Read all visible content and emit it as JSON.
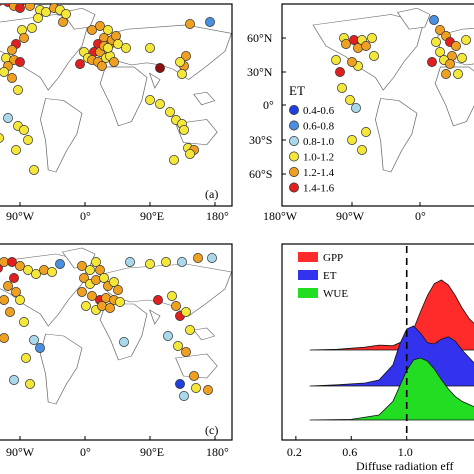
{
  "figure": {
    "panels": {
      "a": {
        "label": "(a)",
        "x_ticks": [
          "90°W",
          "0°",
          "90°E",
          "180°"
        ]
      },
      "b": {
        "label": "",
        "x_ticks": [
          "180°W",
          "90°W",
          "0°"
        ],
        "y_ticks": [
          "60°N",
          "30°N",
          "0°",
          "30°S",
          "60°S"
        ]
      },
      "c": {
        "label": "(c)",
        "x_ticks": [
          "90°W",
          "0°",
          "90°E",
          "180°"
        ]
      }
    },
    "legend_et": {
      "title": "ET",
      "items": [
        {
          "label": "0.4-0.6",
          "color": "#1f3fe0"
        },
        {
          "label": "0.6-0.8",
          "color": "#4a8fe0"
        },
        {
          "label": "0.8-1.0",
          "color": "#a8d8ea"
        },
        {
          "label": "1.0-1.2",
          "color": "#f5e73a"
        },
        {
          "label": "1.2-1.4",
          "color": "#f0a020"
        },
        {
          "label": "1.4-1.6",
          "color": "#e02020"
        }
      ]
    }
  },
  "chart_data": {
    "type": "area",
    "subtype": "ridgeline",
    "xlabel": "Diffuse radiation eff",
    "x_ticks": [
      0.2,
      0.6,
      1.0
    ],
    "x_tick_labels": [
      "0.2",
      "0.6",
      "1.0"
    ],
    "xlim": [
      0.1,
      1.5
    ],
    "reference_line": {
      "x": 1.0,
      "style": "dashed"
    },
    "legend": {
      "position": "top-left"
    },
    "series": [
      {
        "name": "GPP",
        "color": "#ff2a2a",
        "x": [
          0.3,
          0.5,
          0.7,
          0.8,
          0.9,
          1.0,
          1.05,
          1.1,
          1.15,
          1.2,
          1.25,
          1.3,
          1.35,
          1.4,
          1.45,
          1.5
        ],
        "density": [
          0.0,
          0.01,
          0.04,
          0.07,
          0.06,
          0.15,
          0.3,
          0.55,
          0.78,
          0.95,
          1.0,
          0.93,
          0.78,
          0.6,
          0.45,
          0.35
        ]
      },
      {
        "name": "ET",
        "color": "#3333ee",
        "x": [
          0.3,
          0.5,
          0.7,
          0.8,
          0.9,
          0.95,
          1.0,
          1.05,
          1.1,
          1.15,
          1.2,
          1.25,
          1.3,
          1.35,
          1.4,
          1.5
        ],
        "density": [
          0.0,
          0.02,
          0.05,
          0.1,
          0.35,
          0.7,
          0.95,
          1.0,
          0.88,
          0.72,
          0.7,
          0.78,
          0.82,
          0.75,
          0.6,
          0.35
        ]
      },
      {
        "name": "WUE",
        "color": "#22dd22",
        "x": [
          0.3,
          0.6,
          0.8,
          0.9,
          0.95,
          1.0,
          1.05,
          1.1,
          1.15,
          1.2,
          1.25,
          1.3,
          1.35,
          1.4,
          1.5
        ],
        "density": [
          0.0,
          0.01,
          0.08,
          0.3,
          0.55,
          0.8,
          0.97,
          1.0,
          0.95,
          0.82,
          0.65,
          0.5,
          0.38,
          0.3,
          0.2
        ]
      }
    ]
  },
  "sites": {
    "a": [
      [
        -2,
        1.5,
        "#e02020"
      ],
      [
        8,
        2,
        "#e02020"
      ],
      [
        14,
        6,
        "#f0a020"
      ],
      [
        20,
        8,
        "#e02020"
      ],
      [
        30,
        6,
        "#f0a020"
      ],
      [
        40,
        10,
        "#f5e73a"
      ],
      [
        46,
        12,
        "#f5e73a"
      ],
      [
        54,
        8,
        "#f0a020"
      ],
      [
        60,
        10,
        "#f5e73a"
      ],
      [
        38,
        18,
        "#f5e73a"
      ],
      [
        32,
        28,
        "#f5e73a"
      ],
      [
        22,
        30,
        "#f5e73a"
      ],
      [
        24,
        38,
        "#f0a020"
      ],
      [
        16,
        44,
        "#e02020"
      ],
      [
        12,
        50,
        "#f0a020"
      ],
      [
        6,
        58,
        "#f5e73a"
      ],
      [
        14,
        60,
        "#f0a020"
      ],
      [
        20,
        62,
        "#e02020"
      ],
      [
        8,
        66,
        "#f0a020"
      ],
      [
        4,
        72,
        "#f5e73a"
      ],
      [
        12,
        78,
        "#f0a020"
      ],
      [
        18,
        90,
        "#f5e73a"
      ],
      [
        8,
        118,
        "#a8d8ea"
      ],
      [
        18,
        126,
        "#f5e73a"
      ],
      [
        24,
        130,
        "#f5e73a"
      ],
      [
        28,
        140,
        "#f5e73a"
      ],
      [
        -1,
        138,
        "#f5e73a"
      ],
      [
        16,
        150,
        "#f5e73a"
      ],
      [
        34,
        170,
        "#f5e73a"
      ],
      [
        63,
        22,
        "#f0a020"
      ],
      [
        66,
        14,
        "#f5e73a"
      ],
      [
        92,
        30,
        "#f0a020"
      ],
      [
        100,
        26,
        "#f0a020"
      ],
      [
        104,
        38,
        "#f0a020"
      ],
      [
        98,
        44,
        "#e02020"
      ],
      [
        108,
        30,
        "#f5e73a"
      ],
      [
        110,
        44,
        "#f0a020"
      ],
      [
        112,
        40,
        "#f0a020"
      ],
      [
        116,
        36,
        "#f0a020"
      ],
      [
        118,
        44,
        "#f5e73a"
      ],
      [
        94,
        52,
        "#e02020"
      ],
      [
        100,
        52,
        "#f0a020"
      ],
      [
        84,
        52,
        "#f5e73a"
      ],
      [
        88,
        58,
        "#f5e73a"
      ],
      [
        92,
        60,
        "#f0a020"
      ],
      [
        80,
        64,
        "#e02020"
      ],
      [
        106,
        58,
        "#f5e73a"
      ],
      [
        110,
        56,
        "#f5e73a"
      ],
      [
        114,
        62,
        "#f0a020"
      ],
      [
        98,
        62,
        "#f0a020"
      ],
      [
        102,
        66,
        "#f0a020"
      ],
      [
        104,
        46,
        "#f0a020"
      ],
      [
        108,
        48,
        "#f5e73a"
      ],
      [
        126,
        48,
        "#f5e73a"
      ],
      [
        150,
        48,
        "#f5e73a"
      ],
      [
        160,
        68,
        "#8b1010"
      ],
      [
        184,
        66,
        "#f0a020"
      ],
      [
        186,
        56,
        "#f0a020"
      ],
      [
        180,
        62,
        "#f5e73a"
      ],
      [
        182,
        74,
        "#f5e73a"
      ],
      [
        190,
        24,
        "#f0a020"
      ],
      [
        210,
        22,
        "#4a8fe0"
      ],
      [
        150,
        100,
        "#f5e73a"
      ],
      [
        160,
        104,
        "#f5e73a"
      ],
      [
        170,
        112,
        "#f5e73a"
      ],
      [
        176,
        120,
        "#f5e73a"
      ],
      [
        182,
        124,
        "#f5e73a"
      ],
      [
        184,
        130,
        "#f5e73a"
      ],
      [
        188,
        148,
        "#f5e73a"
      ],
      [
        194,
        150,
        "#f0a020"
      ],
      [
        190,
        154,
        "#f5e73a"
      ],
      [
        174,
        160,
        "#f5e73a"
      ]
    ],
    "b": [
      [
        344,
        38,
        "#f5e73a"
      ],
      [
        346,
        44,
        "#f0a020"
      ],
      [
        354,
        40,
        "#e02020"
      ],
      [
        358,
        48,
        "#f0a020"
      ],
      [
        362,
        40,
        "#f5e73a"
      ],
      [
        366,
        46,
        "#f0a020"
      ],
      [
        372,
        38,
        "#f5e73a"
      ],
      [
        374,
        56,
        "#f5e73a"
      ],
      [
        358,
        66,
        "#f5e73a"
      ],
      [
        352,
        62,
        "#f0a020"
      ],
      [
        340,
        72,
        "#e02020"
      ],
      [
        336,
        60,
        "#f5e73a"
      ],
      [
        342,
        88,
        "#f5e73a"
      ],
      [
        350,
        100,
        "#f5e73a"
      ],
      [
        356,
        108,
        "#a8d8ea"
      ],
      [
        366,
        132,
        "#f5e73a"
      ],
      [
        352,
        140,
        "#f5e73a"
      ],
      [
        362,
        150,
        "#f5e73a"
      ],
      [
        434,
        20,
        "#4a8fe0"
      ],
      [
        440,
        30,
        "#f0a020"
      ],
      [
        436,
        42,
        "#f5e73a"
      ],
      [
        446,
        36,
        "#f0a020"
      ],
      [
        450,
        42,
        "#e02020"
      ],
      [
        456,
        46,
        "#f0a020"
      ],
      [
        440,
        52,
        "#f5e73a"
      ],
      [
        452,
        56,
        "#f0a020"
      ],
      [
        462,
        58,
        "#f5e73a"
      ],
      [
        444,
        60,
        "#f5e73a"
      ],
      [
        432,
        62,
        "#e02020"
      ],
      [
        450,
        64,
        "#f0a020"
      ],
      [
        466,
        40,
        "#f5e73a"
      ],
      [
        458,
        74,
        "#f5e73a"
      ],
      [
        446,
        74,
        "#f0a020"
      ]
    ],
    "c": [
      [
        -2,
        268,
        "#e02020"
      ],
      [
        4,
        262,
        "#f0a020"
      ],
      [
        12,
        262,
        "#e02020"
      ],
      [
        20,
        266,
        "#f0a020"
      ],
      [
        28,
        270,
        "#f5e73a"
      ],
      [
        36,
        274,
        "#f5e73a"
      ],
      [
        44,
        270,
        "#f0a020"
      ],
      [
        52,
        272,
        "#f5e73a"
      ],
      [
        60,
        264,
        "#4a8fe0"
      ],
      [
        14,
        278,
        "#e02020"
      ],
      [
        8,
        286,
        "#f0a020"
      ],
      [
        4,
        300,
        "#f0a020"
      ],
      [
        16,
        292,
        "#f0a020"
      ],
      [
        20,
        300,
        "#f5e73a"
      ],
      [
        10,
        312,
        "#f0a020"
      ],
      [
        24,
        322,
        "#f5e73a"
      ],
      [
        34,
        340,
        "#a8d8ea"
      ],
      [
        40,
        348,
        "#4a8fe0"
      ],
      [
        26,
        358,
        "#f5e73a"
      ],
      [
        14,
        380,
        "#a8d8ea"
      ],
      [
        30,
        384,
        "#f5e73a"
      ],
      [
        4,
        338,
        "#f0a020"
      ],
      [
        82,
        266,
        "#f0a020"
      ],
      [
        90,
        270,
        "#f5e73a"
      ],
      [
        96,
        262,
        "#f5e73a"
      ],
      [
        100,
        270,
        "#f0a020"
      ],
      [
        84,
        278,
        "#f0a020"
      ],
      [
        90,
        284,
        "#f5e73a"
      ],
      [
        96,
        280,
        "#f0a020"
      ],
      [
        104,
        278,
        "#f5e73a"
      ],
      [
        108,
        286,
        "#f0a020"
      ],
      [
        114,
        282,
        "#f5e73a"
      ],
      [
        118,
        290,
        "#f0a020"
      ],
      [
        82,
        292,
        "#f0a020"
      ],
      [
        92,
        296,
        "#f0a020"
      ],
      [
        100,
        300,
        "#e02020"
      ],
      [
        106,
        298,
        "#f0a020"
      ],
      [
        114,
        300,
        "#f0a020"
      ],
      [
        96,
        310,
        "#f5e73a"
      ],
      [
        102,
        306,
        "#f0a020"
      ],
      [
        110,
        308,
        "#f0a020"
      ],
      [
        120,
        302,
        "#f5e73a"
      ],
      [
        86,
        306,
        "#f5e73a"
      ],
      [
        130,
        262,
        "#a8d8ea"
      ],
      [
        150,
        264,
        "#f5e73a"
      ],
      [
        166,
        262,
        "#f5e73a"
      ],
      [
        182,
        262,
        "#a8d8ea"
      ],
      [
        198,
        258,
        "#f0a020"
      ],
      [
        212,
        258,
        "#a8d8ea"
      ],
      [
        158,
        300,
        "#e02020"
      ],
      [
        172,
        296,
        "#f5e73a"
      ],
      [
        176,
        306,
        "#f0a020"
      ],
      [
        180,
        316,
        "#e02020"
      ],
      [
        186,
        312,
        "#f5e73a"
      ],
      [
        190,
        330,
        "#f5e73a"
      ],
      [
        168,
        336,
        "#a8d8ea"
      ],
      [
        178,
        346,
        "#f5e73a"
      ],
      [
        186,
        352,
        "#f0a020"
      ],
      [
        124,
        342,
        "#a8d8ea"
      ],
      [
        180,
        384,
        "#1f3fe0"
      ],
      [
        194,
        376,
        "#f0a020"
      ],
      [
        196,
        388,
        "#f5e73a"
      ],
      [
        184,
        396,
        "#a8d8ea"
      ],
      [
        208,
        390,
        "#f0a020"
      ]
    ]
  }
}
